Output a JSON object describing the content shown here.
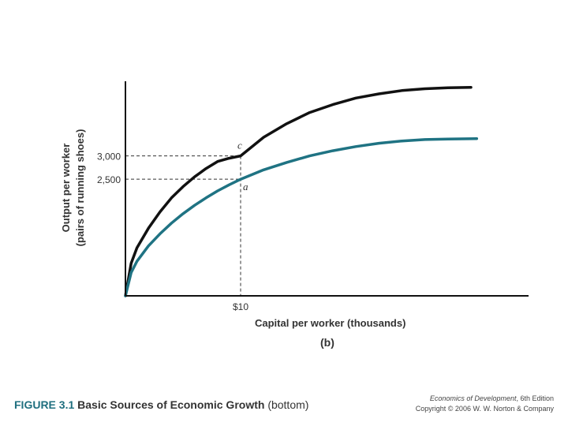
{
  "chart_data": {
    "type": "line",
    "panel_label": "(b)",
    "xlabel": "Capital per worker (thousands)",
    "ylabel": [
      "Output per worker",
      "(pairs of running shoes)"
    ],
    "x_ticks": [
      {
        "value": 10,
        "label": "$10"
      }
    ],
    "y_ticks": [
      {
        "value": 2500,
        "label": "2,500"
      },
      {
        "value": 3000,
        "label": "3,000"
      }
    ],
    "xlim": [
      0,
      30
    ],
    "ylim": [
      0,
      4600
    ],
    "series": [
      {
        "key": "upper",
        "color": "#111111",
        "x": [
          0,
          0.5,
          1,
          2,
          3,
          4,
          5,
          6,
          7,
          8,
          9,
          10,
          12,
          14,
          16,
          18,
          20,
          22,
          24,
          26,
          28,
          30
        ],
        "y": [
          0,
          700,
          1030,
          1450,
          1800,
          2100,
          2340,
          2550,
          2730,
          2880,
          2950,
          3000,
          3400,
          3690,
          3930,
          4100,
          4240,
          4330,
          4400,
          4440,
          4460,
          4470
        ]
      },
      {
        "key": "lower",
        "color": "#1f7383",
        "x": [
          0,
          0.5,
          1,
          2,
          3,
          4,
          5,
          6,
          7,
          8,
          9,
          10,
          12,
          14,
          16,
          18,
          20,
          22,
          24,
          26,
          28,
          30.5
        ],
        "y": [
          0,
          500,
          740,
          1070,
          1330,
          1560,
          1760,
          1940,
          2100,
          2250,
          2380,
          2500,
          2700,
          2860,
          3000,
          3110,
          3200,
          3270,
          3320,
          3350,
          3360,
          3370
        ]
      }
    ],
    "points": [
      {
        "label": "c",
        "x": 10,
        "y": 3000
      },
      {
        "label": "a",
        "x": 10,
        "y": 2500
      }
    ]
  },
  "caption": {
    "number": "FIGURE 3.1",
    "title": "Basic Sources of Economic Growth",
    "suffix": "(bottom)"
  },
  "credit": {
    "book": "Economics of Development",
    "edition": ", 6th Edition",
    "copyright": "Copyright © 2006 W. W. Norton & Company"
  }
}
